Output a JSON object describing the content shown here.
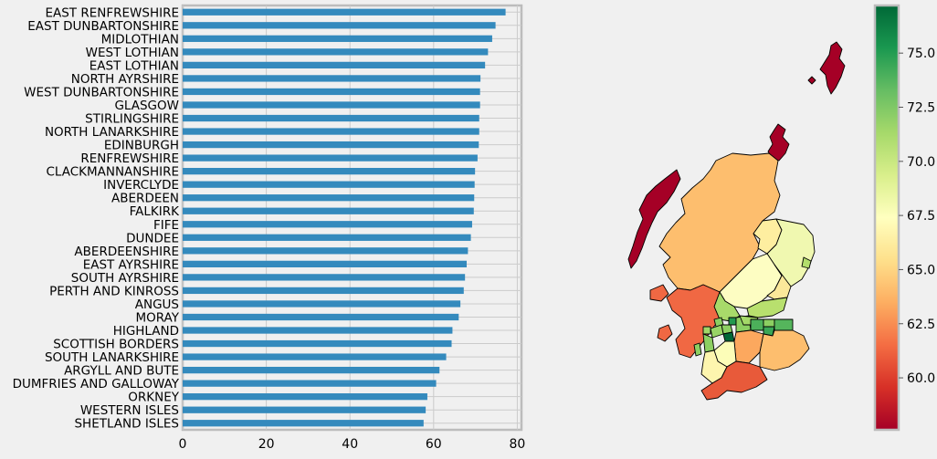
{
  "chart_data": [
    {
      "type": "bar",
      "orientation": "horizontal",
      "categories": [
        "EAST RENFREWSHIRE",
        "EAST DUNBARTONSHIRE",
        "MIDLOTHIAN",
        "WEST LOTHIAN",
        "EAST LOTHIAN",
        "NORTH AYRSHIRE",
        "WEST DUNBARTONSHIRE",
        "GLASGOW",
        "STIRLINGSHIRE",
        "NORTH LANARKSHIRE",
        "EDINBURGH",
        "RENFREWSHIRE",
        "CLACKMANNANSHIRE",
        "INVERCLYDE",
        "ABERDEEN",
        "FALKIRK",
        "FIFE",
        "DUNDEE",
        "ABERDEENSHIRE",
        "EAST AYRSHIRE",
        "SOUTH AYRSHIRE",
        "PERTH AND KINROSS",
        "ANGUS",
        "MORAY",
        "HIGHLAND",
        "SCOTTISH BORDERS",
        "SOUTH LANARKSHIRE",
        "ARGYLL AND BUTE",
        "DUMFRIES AND GALLOWAY",
        "ORKNEY",
        "WESTERN ISLES",
        "SHETLAND ISLES"
      ],
      "values": [
        77.2,
        74.8,
        74.0,
        73.0,
        72.3,
        71.2,
        71.1,
        71.1,
        70.9,
        70.9,
        70.8,
        70.5,
        69.9,
        69.8,
        69.7,
        69.6,
        69.2,
        68.9,
        68.2,
        67.9,
        67.5,
        67.2,
        66.4,
        66.0,
        64.5,
        64.3,
        63.0,
        61.4,
        60.6,
        58.5,
        58.1,
        57.6
      ],
      "xticks": [
        "0",
        "20",
        "40",
        "60",
        "80"
      ],
      "xlim": [
        0,
        81
      ],
      "bar_color": "#348abd",
      "grid": true
    },
    {
      "type": "choropleth",
      "colormap": "RdYlGn",
      "colorbar_ticks": [
        "60.0",
        "62.5",
        "65.0",
        "67.5",
        "70.0",
        "72.5",
        "75.0"
      ],
      "colorbar_range": [
        57.6,
        77.2
      ]
    }
  ]
}
